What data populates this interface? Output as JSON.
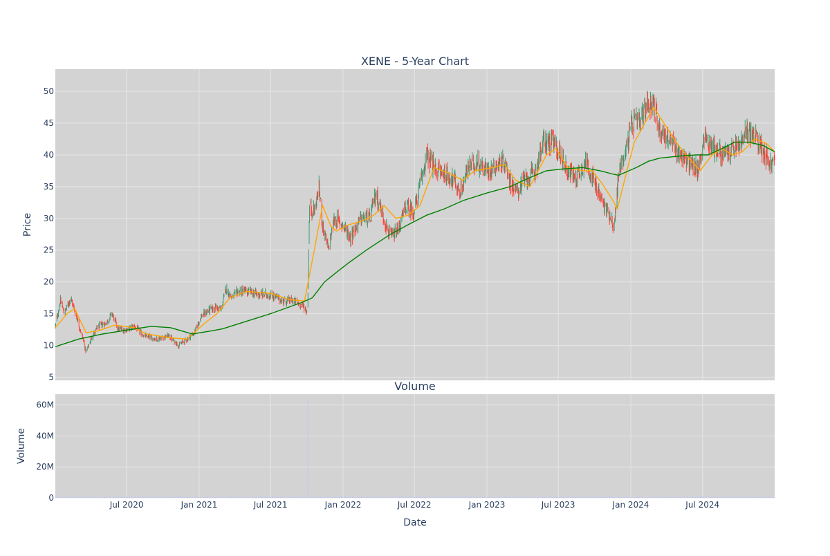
{
  "title": "XENE - 5-Year Chart",
  "subplot_title": "Volume",
  "colors": {
    "plot_bg": "#d3d3d3",
    "grid": "#e6e6e6",
    "text": "#2a3f5f",
    "increasing": "#3d9970",
    "decreasing": "#ff4136",
    "ma_short": "#ffa500",
    "ma_long": "#008000",
    "volume": "#c4c8ee"
  },
  "chart_data": [
    {
      "type": "candlestick",
      "name": "price",
      "title": "XENE - 5-Year Chart",
      "xlabel": "",
      "ylabel": "Price",
      "xlim": [
        "2020-01-02",
        "2024-12-31"
      ],
      "ylim": [
        4.5,
        53.5
      ],
      "yticks": [
        5,
        10,
        15,
        20,
        25,
        30,
        35,
        40,
        45,
        50
      ],
      "grid": true,
      "legend": "none",
      "close_path": [
        [
          "2020-01-02",
          13.0
        ],
        [
          "2020-01-15",
          17.0
        ],
        [
          "2020-01-25",
          15.0
        ],
        [
          "2020-02-10",
          17.5
        ],
        [
          "2020-02-25",
          14.5
        ],
        [
          "2020-03-10",
          11.5
        ],
        [
          "2020-03-20",
          9.0
        ],
        [
          "2020-04-05",
          11.5
        ],
        [
          "2020-04-20",
          13.0
        ],
        [
          "2020-05-10",
          13.5
        ],
        [
          "2020-05-25",
          15.0
        ],
        [
          "2020-06-10",
          12.5
        ],
        [
          "2020-07-01",
          12.5
        ],
        [
          "2020-07-20",
          13.0
        ],
        [
          "2020-08-15",
          11.5
        ],
        [
          "2020-09-15",
          11.0
        ],
        [
          "2020-10-15",
          11.5
        ],
        [
          "2020-11-10",
          10.0
        ],
        [
          "2020-12-01",
          11.0
        ],
        [
          "2020-12-20",
          12.0
        ],
        [
          "2021-01-05",
          14.5
        ],
        [
          "2021-01-25",
          15.5
        ],
        [
          "2021-02-15",
          16.0
        ],
        [
          "2021-02-25",
          15.5
        ],
        [
          "2021-03-10",
          19.0
        ],
        [
          "2021-03-25",
          17.5
        ],
        [
          "2021-04-10",
          18.5
        ],
        [
          "2021-05-01",
          18.5
        ],
        [
          "2021-06-01",
          18.0
        ],
        [
          "2021-07-01",
          18.0
        ],
        [
          "2021-08-01",
          17.0
        ],
        [
          "2021-09-01",
          17.0
        ],
        [
          "2021-09-25",
          16.0
        ],
        [
          "2021-10-03",
          15.0
        ],
        [
          "2021-10-08",
          32.0
        ],
        [
          "2021-10-20",
          31.0
        ],
        [
          "2021-11-01",
          35.0
        ],
        [
          "2021-11-10",
          29.0
        ],
        [
          "2021-11-25",
          25.0
        ],
        [
          "2021-12-10",
          30.0
        ],
        [
          "2022-01-01",
          29.0
        ],
        [
          "2022-01-20",
          27.0
        ],
        [
          "2022-02-15",
          30.0
        ],
        [
          "2022-03-10",
          30.0
        ],
        [
          "2022-03-25",
          34.0
        ],
        [
          "2022-04-15",
          30.0
        ],
        [
          "2022-05-01",
          27.0
        ],
        [
          "2022-05-20",
          28.0
        ],
        [
          "2022-06-10",
          32.0
        ],
        [
          "2022-06-30",
          31.0
        ],
        [
          "2022-07-15",
          35.0
        ],
        [
          "2022-08-01",
          40.0
        ],
        [
          "2022-08-20",
          38.0
        ],
        [
          "2022-09-15",
          37.0
        ],
        [
          "2022-10-10",
          36.0
        ],
        [
          "2022-10-25",
          34.0
        ],
        [
          "2022-11-15",
          38.0
        ],
        [
          "2022-12-05",
          39.0
        ],
        [
          "2023-01-01",
          37.5
        ],
        [
          "2023-01-25",
          38.5
        ],
        [
          "2023-02-15",
          39.0
        ],
        [
          "2023-03-01",
          36.0
        ],
        [
          "2023-03-15",
          34.0
        ],
        [
          "2023-04-05",
          36.0
        ],
        [
          "2023-05-01",
          37.0
        ],
        [
          "2023-05-25",
          42.0
        ],
        [
          "2023-06-15",
          42.0
        ],
        [
          "2023-07-05",
          40.5
        ],
        [
          "2023-07-25",
          37.5
        ],
        [
          "2023-08-15",
          36.5
        ],
        [
          "2023-09-10",
          39.0
        ],
        [
          "2023-10-01",
          35.5
        ],
        [
          "2023-10-25",
          32.0
        ],
        [
          "2023-11-10",
          30.5
        ],
        [
          "2023-11-20",
          28.5
        ],
        [
          "2023-12-01",
          37.0
        ],
        [
          "2023-12-20",
          41.0
        ],
        [
          "2024-01-05",
          45.0
        ],
        [
          "2024-01-25",
          45.0
        ],
        [
          "2024-02-10",
          48.0
        ],
        [
          "2024-02-25",
          48.5
        ],
        [
          "2024-03-15",
          44.0
        ],
        [
          "2024-04-05",
          42.5
        ],
        [
          "2024-04-25",
          41.0
        ],
        [
          "2024-05-15",
          39.5
        ],
        [
          "2024-06-01",
          38.5
        ],
        [
          "2024-06-20",
          37.5
        ],
        [
          "2024-07-05",
          43.0
        ],
        [
          "2024-07-25",
          41.5
        ],
        [
          "2024-08-20",
          40.0
        ],
        [
          "2024-09-10",
          40.5
        ],
        [
          "2024-10-05",
          41.5
        ],
        [
          "2024-10-25",
          44.0
        ],
        [
          "2024-11-15",
          42.5
        ],
        [
          "2024-12-01",
          41.0
        ],
        [
          "2024-12-20",
          38.5
        ],
        [
          "2024-12-31",
          39.0
        ]
      ],
      "overlays": [
        {
          "color": "#ffa500",
          "values": [
            [
              "2020-01-02",
              12.8
            ],
            [
              "2020-02-01",
              15.0
            ],
            [
              "2020-02-20",
              15.8
            ],
            [
              "2020-03-20",
              12.0
            ],
            [
              "2020-04-20",
              12.3
            ],
            [
              "2020-06-01",
              13.2
            ],
            [
              "2020-07-20",
              12.8
            ],
            [
              "2020-08-20",
              11.8
            ],
            [
              "2020-10-20",
              11.2
            ],
            [
              "2020-12-01",
              11.0
            ],
            [
              "2021-01-15",
              13.5
            ],
            [
              "2021-02-15",
              15.0
            ],
            [
              "2021-03-20",
              17.5
            ],
            [
              "2021-05-01",
              18.5
            ],
            [
              "2021-07-01",
              18.2
            ],
            [
              "2021-08-20",
              17.2
            ],
            [
              "2021-09-25",
              17.0
            ],
            [
              "2021-10-20",
              25.0
            ],
            [
              "2021-11-10",
              32.0
            ],
            [
              "2021-12-01",
              28.8
            ],
            [
              "2021-12-15",
              28.0
            ],
            [
              "2022-01-15",
              29.0
            ],
            [
              "2022-02-15",
              29.5
            ],
            [
              "2022-03-20",
              30.5
            ],
            [
              "2022-04-15",
              32.0
            ],
            [
              "2022-05-15",
              30.0
            ],
            [
              "2022-06-15",
              30.5
            ],
            [
              "2022-07-15",
              32.0
            ],
            [
              "2022-08-20",
              38.0
            ],
            [
              "2022-10-01",
              37.0
            ],
            [
              "2022-11-01",
              36.0
            ],
            [
              "2022-12-01",
              37.5
            ],
            [
              "2023-01-15",
              38.0
            ],
            [
              "2023-02-15",
              38.5
            ],
            [
              "2023-03-15",
              36.0
            ],
            [
              "2023-04-20",
              35.0
            ],
            [
              "2023-06-01",
              40.0
            ],
            [
              "2023-06-25",
              41.0
            ],
            [
              "2023-07-25",
              38.0
            ],
            [
              "2023-09-01",
              37.5
            ],
            [
              "2023-09-25",
              37.5
            ],
            [
              "2023-10-20",
              35.5
            ],
            [
              "2023-11-15",
              33.0
            ],
            [
              "2023-11-28",
              31.5
            ],
            [
              "2023-12-20",
              37.0
            ],
            [
              "2024-01-10",
              42.0
            ],
            [
              "2024-02-10",
              45.5
            ],
            [
              "2024-02-28",
              47.5
            ],
            [
              "2024-03-25",
              45.0
            ],
            [
              "2024-04-25",
              42.0
            ],
            [
              "2024-05-20",
              40.0
            ],
            [
              "2024-06-25",
              37.5
            ],
            [
              "2024-07-25",
              40.0
            ],
            [
              "2024-08-20",
              41.0
            ],
            [
              "2024-09-15",
              40.0
            ],
            [
              "2024-10-10",
              40.5
            ],
            [
              "2024-11-10",
              42.5
            ],
            [
              "2024-12-10",
              41.8
            ],
            [
              "2024-12-31",
              40.5
            ]
          ]
        },
        {
          "color": "#008000",
          "values": [
            [
              "2020-01-02",
              9.8
            ],
            [
              "2020-03-01",
              11.0
            ],
            [
              "2020-05-01",
              11.8
            ],
            [
              "2020-07-01",
              12.4
            ],
            [
              "2020-09-01",
              13.0
            ],
            [
              "2020-10-20",
              12.8
            ],
            [
              "2020-12-15",
              11.8
            ],
            [
              "2021-02-01",
              12.3
            ],
            [
              "2021-03-01",
              12.6
            ],
            [
              "2021-05-01",
              13.8
            ],
            [
              "2021-07-01",
              15.0
            ],
            [
              "2021-08-15",
              16.0
            ],
            [
              "2021-09-20",
              16.8
            ],
            [
              "2021-10-15",
              17.5
            ],
            [
              "2021-11-15",
              20.0
            ],
            [
              "2021-12-15",
              21.5
            ],
            [
              "2022-01-15",
              23.0
            ],
            [
              "2022-03-01",
              25.0
            ],
            [
              "2022-05-01",
              27.5
            ],
            [
              "2022-06-15",
              29.0
            ],
            [
              "2022-08-01",
              30.5
            ],
            [
              "2022-09-15",
              31.5
            ],
            [
              "2022-11-01",
              32.8
            ],
            [
              "2023-01-01",
              34.0
            ],
            [
              "2023-03-01",
              35.0
            ],
            [
              "2023-04-15",
              36.3
            ],
            [
              "2023-06-01",
              37.5
            ],
            [
              "2023-07-15",
              37.8
            ],
            [
              "2023-09-01",
              38.0
            ],
            [
              "2023-10-15",
              37.5
            ],
            [
              "2023-11-15",
              37.0
            ],
            [
              "2023-12-01",
              36.8
            ],
            [
              "2024-01-15",
              38.0
            ],
            [
              "2024-02-15",
              39.0
            ],
            [
              "2024-03-15",
              39.5
            ],
            [
              "2024-05-01",
              39.8
            ],
            [
              "2024-06-15",
              40.0
            ],
            [
              "2024-07-15",
              40.0
            ],
            [
              "2024-08-20",
              41.0
            ],
            [
              "2024-09-20",
              42.0
            ],
            [
              "2024-10-25",
              42.0
            ],
            [
              "2024-12-01",
              41.5
            ],
            [
              "2024-12-31",
              40.5
            ]
          ]
        }
      ]
    },
    {
      "type": "bar",
      "name": "volume",
      "title": "Volume",
      "xlabel": "Date",
      "ylabel": "Volume",
      "xlim": [
        "2020-01-02",
        "2024-12-31"
      ],
      "ylim": [
        0,
        67000000
      ],
      "yticks": [
        0,
        20000000,
        40000000,
        60000000
      ],
      "ytick_labels": [
        "0",
        "20M",
        "40M",
        "60M"
      ],
      "xticks": [
        "2020-07-01",
        "2021-01-01",
        "2021-07-01",
        "2022-01-01",
        "2022-07-01",
        "2023-01-01",
        "2023-07-01",
        "2024-01-01",
        "2024-07-01"
      ],
      "xtick_labels": [
        "Jul 2020",
        "Jan 2021",
        "Jul 2021",
        "Jan 2022",
        "Jul 2022",
        "Jan 2023",
        "Jul 2023",
        "Jan 2024",
        "Jul 2024"
      ],
      "grid": true,
      "legend": "none",
      "baseline_volume": 500000,
      "spikes": [
        [
          "2021-10-04",
          63000000
        ],
        [
          "2021-10-05",
          4000000
        ],
        [
          "2021-10-06",
          2000000
        ]
      ]
    }
  ]
}
